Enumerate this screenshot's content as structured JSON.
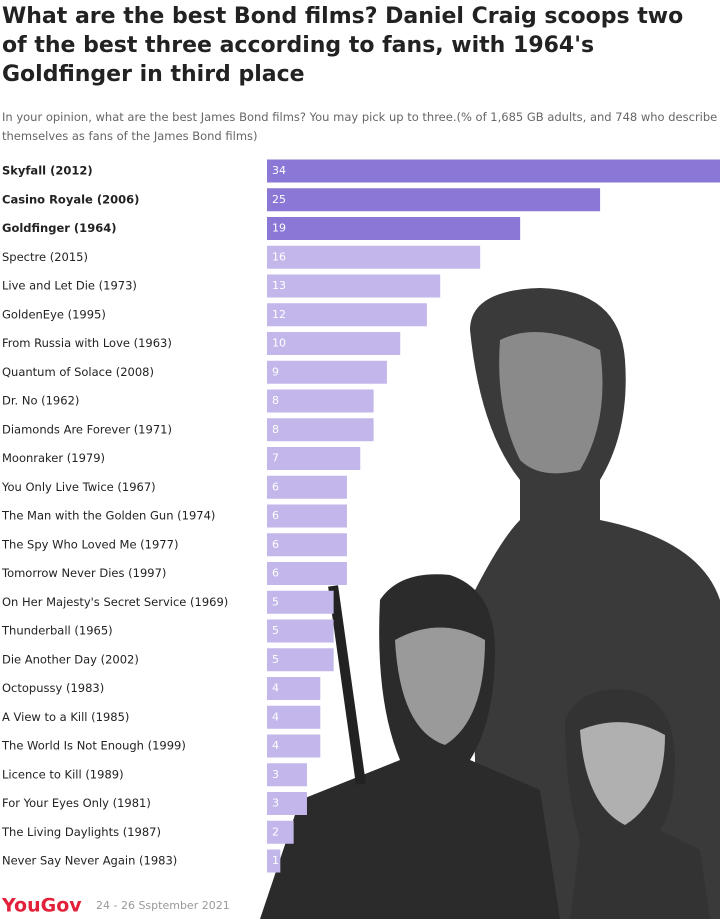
{
  "chart_data": {
    "type": "bar",
    "orientation": "horizontal",
    "title": "What are the best Bond films? Daniel Craig scoops two of the best three according to fans, with 1964's Goldfinger in third place",
    "subtitle": "In your opinion, what are the best James Bond films? You may pick up to three.(% of 1,685 GB adults, and 748 who describe themselves as fans of the James Bond films)",
    "categories": [
      "Skyfall (2012)",
      "Casino Royale (2006)",
      "Goldfinger (1964)",
      "Spectre (2015)",
      "Live and Let Die (1973)",
      "GoldenEye (1995)",
      "From Russia with Love (1963)",
      "Quantum of Solace (2008)",
      "Dr. No (1962)",
      "Diamonds Are Forever (1971)",
      "Moonraker (1979)",
      "You Only Live Twice (1967)",
      "The Man with the Golden Gun (1974)",
      "The Spy Who Loved Me (1977)",
      "Tomorrow Never Dies (1997)",
      "On Her Majesty's Secret Service (1969)",
      "Thunderball (1965)",
      "Die Another Day (2002)",
      "Octopussy (1983)",
      "A View to a Kill (1985)",
      "The World Is Not Enough (1999)",
      "Licence to Kill (1989)",
      "For Your Eyes Only (1981)",
      "The Living Daylights (1987)",
      "Never Say Never Again (1983)"
    ],
    "values": [
      34,
      25,
      19,
      16,
      13,
      12,
      10,
      9,
      8,
      8,
      7,
      6,
      6,
      6,
      6,
      5,
      5,
      5,
      4,
      4,
      4,
      3,
      3,
      2,
      1
    ],
    "color": "#c3b6eb",
    "colors": [
      "#8b77d6",
      "#8b77d6",
      "#8b77d6",
      "#c3b6eb",
      "#c3b6eb",
      "#c3b6eb",
      "#c3b6eb",
      "#c3b6eb",
      "#c3b6eb",
      "#c3b6eb",
      "#c3b6eb",
      "#c3b6eb",
      "#c3b6eb",
      "#c3b6eb",
      "#c3b6eb",
      "#c3b6eb",
      "#c3b6eb",
      "#c3b6eb",
      "#c3b6eb",
      "#c3b6eb",
      "#c3b6eb",
      "#c3b6eb",
      "#c3b6eb",
      "#c3b6eb",
      "#c3b6eb"
    ],
    "xlim": [
      0,
      34
    ],
    "source": "YouGov",
    "date": "24 - 26 Ssptember 2021"
  }
}
